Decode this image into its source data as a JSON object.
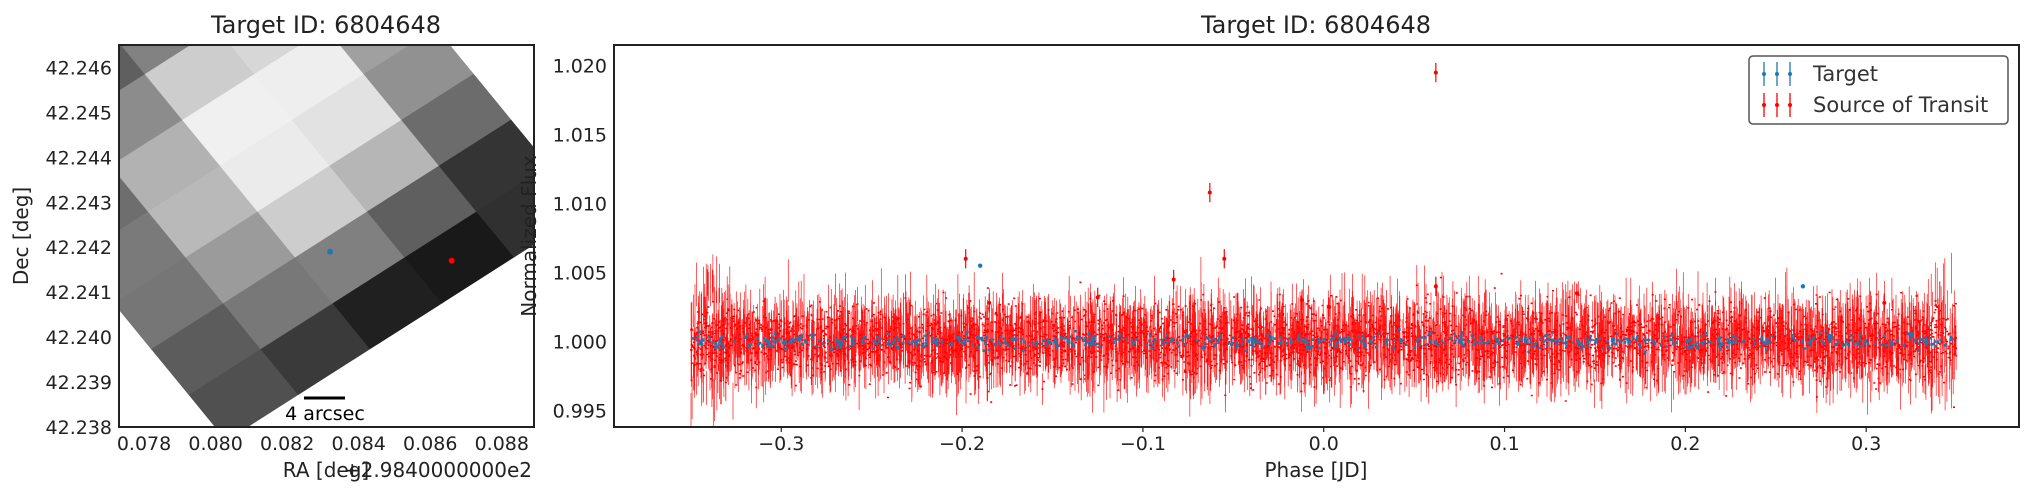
{
  "chart_data": [
    {
      "type": "heatmap",
      "title": "Target ID: 6804648",
      "xlabel": "RA [deg]",
      "ylabel": "Dec [deg]",
      "x_offset_label": "+2.9840000000e2",
      "xlim": [
        0.0773,
        0.0889
      ],
      "ylim": [
        42.238,
        42.2465
      ],
      "x_ticks": [
        "0.078",
        "0.080",
        "0.082",
        "0.084",
        "0.086",
        "0.088"
      ],
      "y_ticks": [
        "42.238",
        "42.239",
        "42.240",
        "42.241",
        "42.242",
        "42.243",
        "42.244",
        "42.245",
        "42.246"
      ],
      "grid": false,
      "colormap": "gray",
      "scalebar_label": "4 arcsec",
      "pixel_grid": {
        "origin": [
          0.0803,
          42.2377
        ],
        "col_step": [
          0.00201,
          0.00102
        ],
        "row_step": [
          -0.00105,
          0.00102
        ],
        "values": [
          [
            80,
            58,
            32,
            25,
            48
          ],
          [
            92,
            120,
            128,
            95,
            52
          ],
          [
            118,
            155,
            205,
            182,
            108
          ],
          [
            122,
            185,
            235,
            226,
            145
          ],
          [
            110,
            178,
            240,
            238,
            160
          ],
          [
            85,
            140,
            205,
            215,
            142
          ],
          [
            55,
            95,
            130,
            148,
            108
          ],
          [
            38,
            58,
            62,
            56,
            38
          ]
        ]
      },
      "points": [
        {
          "name": "Target",
          "x": 0.0832,
          "y": 42.2419,
          "color": "#1f77b4"
        },
        {
          "name": "Source of Transit",
          "x": 0.0866,
          "y": 42.2417,
          "color": "#ff0000"
        }
      ]
    },
    {
      "type": "scatter",
      "title": "Target ID: 6804648",
      "xlabel": "Phase [JD]",
      "ylabel": "Normalized Flux",
      "xlim": [
        -0.3925,
        0.3845
      ],
      "ylim": [
        0.9938,
        1.0215
      ],
      "x_ticks": [
        -0.3,
        -0.2,
        -0.1,
        0.0,
        0.1,
        0.2,
        0.3
      ],
      "x_tick_labels": [
        "−0.3",
        "−0.2",
        "−0.1",
        "0.0",
        "0.1",
        "0.2",
        "0.3"
      ],
      "y_ticks": [
        0.995,
        1.0,
        1.005,
        1.01,
        1.015,
        1.02
      ],
      "y_tick_labels": [
        "0.995",
        "1.000",
        "1.005",
        "1.010",
        "1.015",
        "1.020"
      ],
      "grid": false,
      "legend": "top-right",
      "series": [
        {
          "name": "Target",
          "color": "#1f77b4",
          "phase_range": [
            -0.35,
            0.35
          ],
          "baseline": 1.0,
          "scatter": 0.00025,
          "outliers": [
            [
              -0.19,
              1.0055
            ],
            [
              0.265,
              1.004
            ]
          ]
        },
        {
          "name": "Source of Transit",
          "color": "#ff0000",
          "phase_range": [
            -0.35,
            0.35
          ],
          "baseline": 1.0,
          "scatter": 0.0013,
          "error": 0.0014,
          "outliers": [
            [
              0.062,
              1.0195
            ],
            [
              -0.063,
              1.0108
            ],
            [
              -0.055,
              1.006
            ],
            [
              -0.198,
              1.006
            ],
            [
              -0.083,
              1.0045
            ],
            [
              0.062,
              1.004
            ],
            [
              -0.012,
              1.003
            ],
            [
              0.003,
              1.0025
            ],
            [
              -0.185,
              1.0028
            ],
            [
              -0.125,
              1.0032
            ],
            [
              0.14,
              1.0035
            ],
            [
              0.31,
              1.0028
            ]
          ]
        }
      ]
    }
  ]
}
